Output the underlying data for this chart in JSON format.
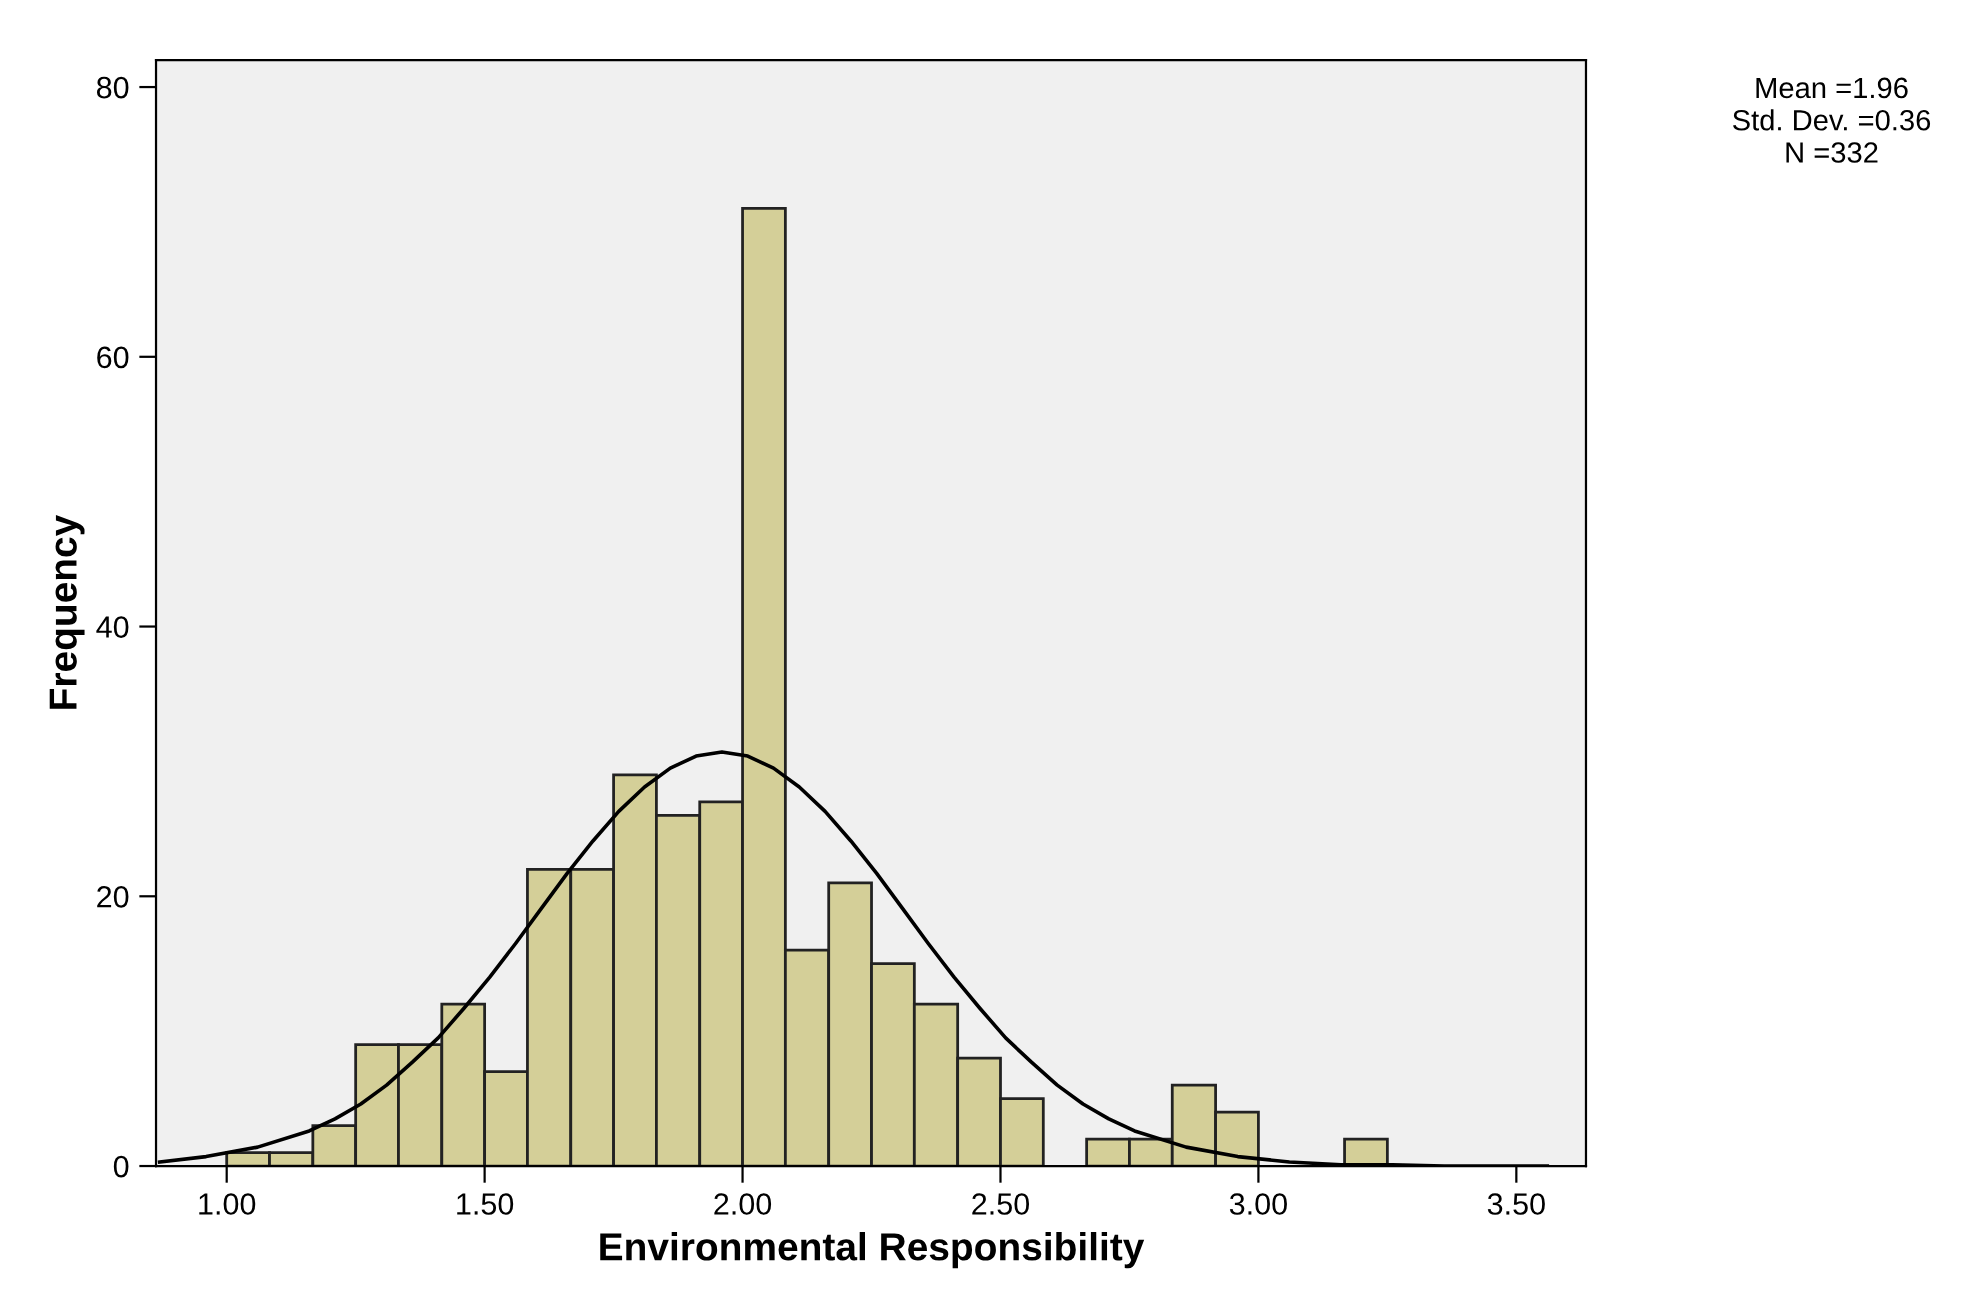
{
  "chart_data": {
    "type": "histogram",
    "xlabel": "Environmental Responsibility",
    "ylabel": "Frequency",
    "annotations": [
      "Mean =1.96",
      "Std. Dev. =0.36",
      "N =332"
    ],
    "color": "#d4cf98",
    "bins": [
      1.0,
      1.083,
      1.167,
      1.25,
      1.333,
      1.417,
      1.5,
      1.583,
      1.667,
      1.75,
      1.833,
      1.917,
      2.0,
      2.083,
      2.167,
      2.25,
      2.333,
      2.417,
      2.5,
      2.583,
      2.667,
      2.75,
      2.833,
      2.917,
      3.0,
      3.167,
      3.25
    ],
    "values": [
      1,
      1,
      3,
      9,
      9,
      12,
      7,
      22,
      22,
      29,
      26,
      27,
      71,
      16,
      21,
      15,
      12,
      8,
      5,
      0,
      2,
      2,
      6,
      4,
      0,
      2
    ],
    "series": [
      {
        "type": "line",
        "color": "#000000",
        "x": [
          0.87,
          0.96,
          1.06,
          1.16,
          1.21,
          1.26,
          1.31,
          1.36,
          1.41,
          1.46,
          1.51,
          1.56,
          1.61,
          1.66,
          1.71,
          1.76,
          1.81,
          1.86,
          1.91,
          1.96,
          2.01,
          2.06,
          2.11,
          2.16,
          2.21,
          2.26,
          2.31,
          2.36,
          2.41,
          2.46,
          2.51,
          2.56,
          2.61,
          2.66,
          2.71,
          2.76,
          2.86,
          2.96,
          3.06,
          3.16,
          3.26,
          3.36,
          3.46,
          3.56
        ],
        "values": [
          0.3,
          0.7,
          1.4,
          2.6,
          3.5,
          4.6,
          6.0,
          7.7,
          9.5,
          11.7,
          14.0,
          16.5,
          19.1,
          21.7,
          24.1,
          26.3,
          28.1,
          29.5,
          30.4,
          30.7,
          30.4,
          29.5,
          28.1,
          26.3,
          24.1,
          21.7,
          19.1,
          16.5,
          14.0,
          11.7,
          9.5,
          7.7,
          6.0,
          4.6,
          3.5,
          2.6,
          1.4,
          0.7,
          0.3,
          0.1,
          0.1,
          0.0,
          0.0,
          0.0
        ]
      }
    ],
    "xlim": [
      0.863,
      3.635
    ],
    "xticks": [
      {
        "value": 1.0,
        "label": "1.00"
      },
      {
        "value": 1.5,
        "label": "1.50"
      },
      {
        "value": 2.0,
        "label": "2.00"
      },
      {
        "value": 2.5,
        "label": "2.50"
      },
      {
        "value": 3.0,
        "label": "3.00"
      },
      {
        "value": 3.5,
        "label": "3.50"
      }
    ],
    "ylim": [
      0,
      82
    ],
    "yticks": [
      0,
      20,
      40,
      60,
      80
    ],
    "grid": false,
    "legend": false
  }
}
